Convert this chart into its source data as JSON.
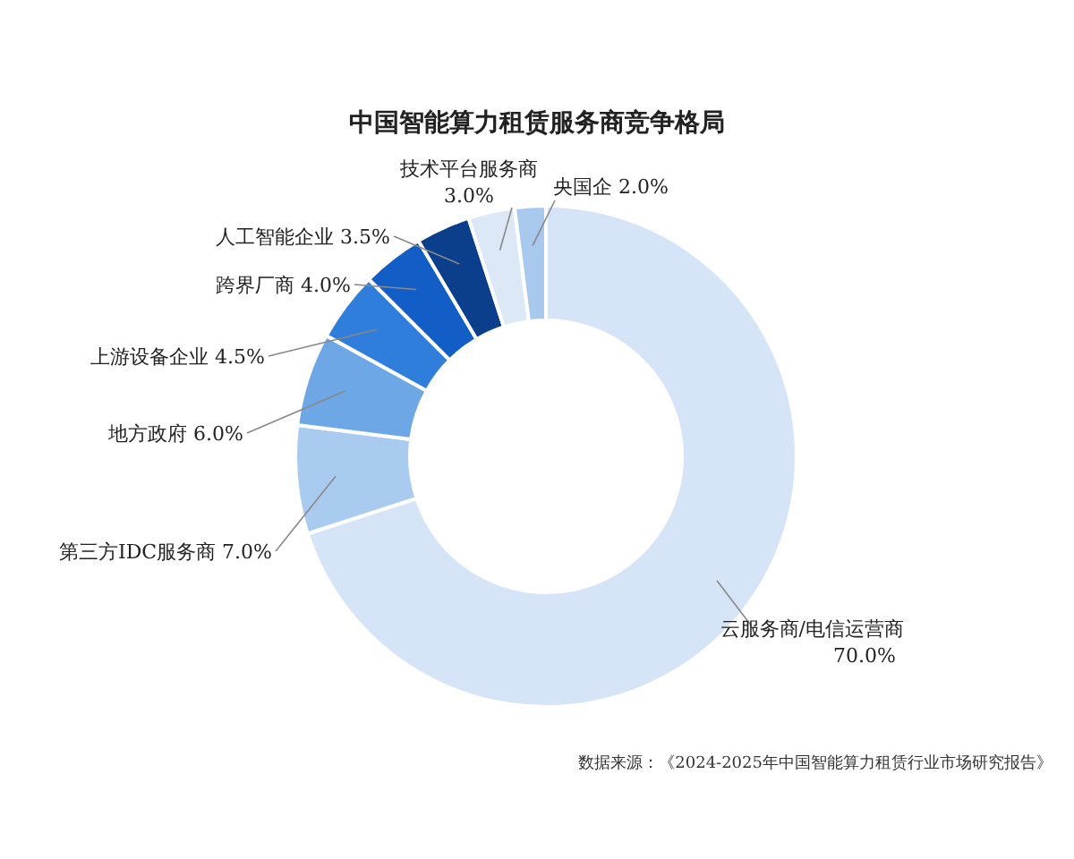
{
  "chart_data": {
    "type": "donut",
    "title": "中国智能算力租赁服务商竞争格局",
    "categories": [
      "云服务商/电信运营商",
      "第三方IDC服务商",
      "地方政府",
      "上游设备企业",
      "跨界厂商",
      "人工智能企业",
      "技术平台服务商",
      "央国企"
    ],
    "values": [
      70.0,
      7.0,
      6.0,
      4.5,
      4.0,
      3.5,
      3.0,
      2.0
    ],
    "value_labels": [
      "70.0%",
      "7.0%",
      "6.0%",
      "4.5%",
      "4.0%",
      "3.5%",
      "3.0%",
      "2.0%"
    ],
    "colors": [
      "#d5e5f7",
      "#a9cbef",
      "#6ea7e6",
      "#2f7edb",
      "#135ec6",
      "#0b3f8b",
      "#dce8f6",
      "#a8c8ee"
    ],
    "annotations": [
      "数据来源：《2024-2025年中国智能算力租赁行业市场研究报告》"
    ]
  }
}
